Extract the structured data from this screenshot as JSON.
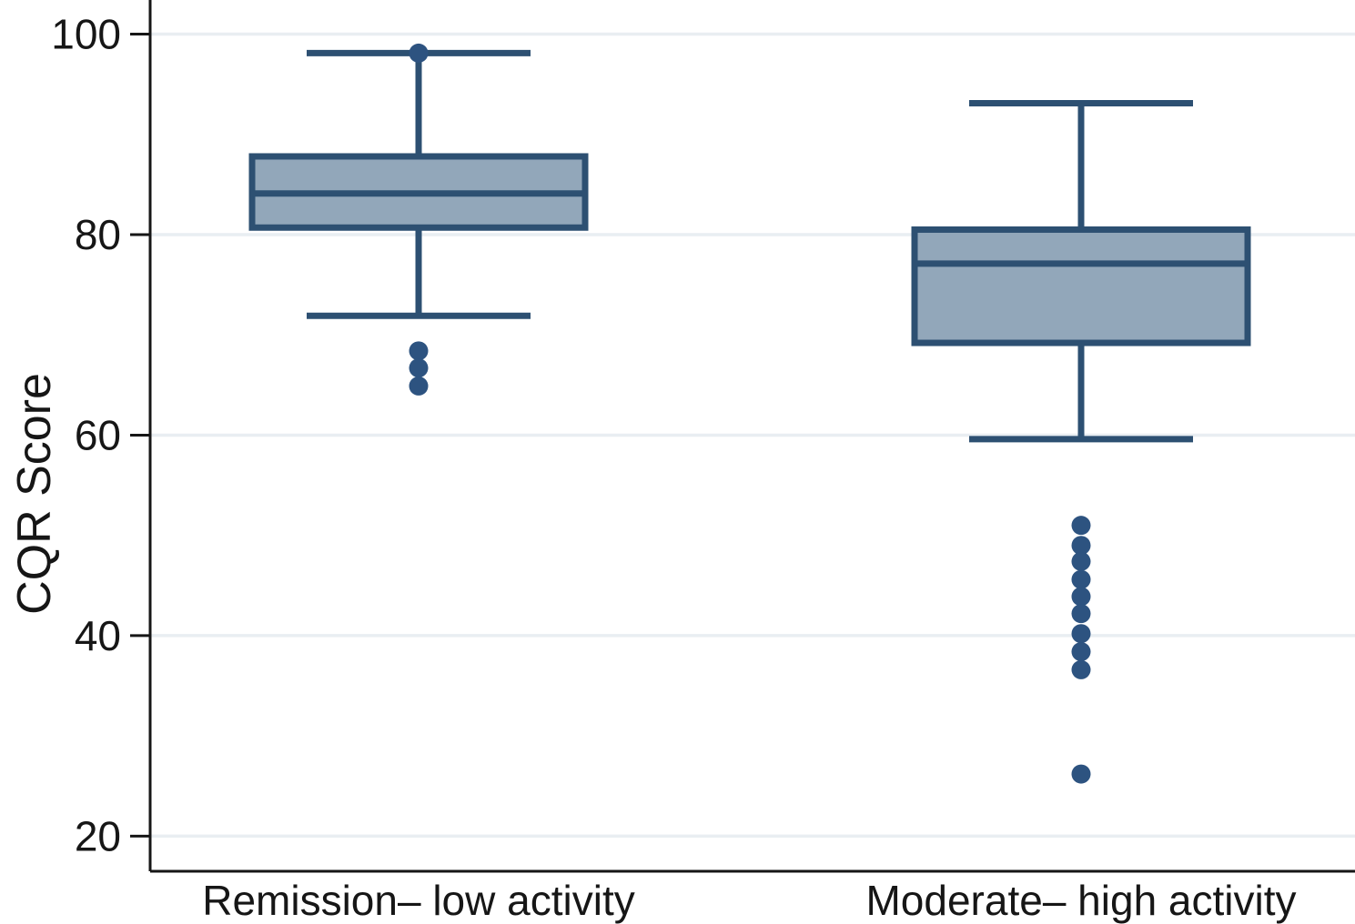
{
  "figure": {
    "background": "#ffffff"
  },
  "chart_data": {
    "type": "boxplot",
    "title": "",
    "xlabel": "",
    "ylabel": "CQR Score",
    "ylim": [
      16.5,
      103.4
    ],
    "yticks": [
      20,
      40,
      60,
      80,
      100
    ],
    "grid": "horizontal-light",
    "legend": "none",
    "categories": [
      "Remission– low activity",
      "Moderate– high activity"
    ],
    "series": [
      {
        "name": "Remission– low activity",
        "whisker_low": 71.9,
        "q1": 80.7,
        "median": 84.1,
        "q3": 87.8,
        "whisker_high": 98.1,
        "outliers": [
          98.1,
          68.4,
          66.7,
          64.9
        ]
      },
      {
        "name": "Moderate– high activity",
        "whisker_low": 59.6,
        "q1": 69.2,
        "median": 77.1,
        "q3": 80.5,
        "whisker_high": 93.1,
        "outliers": [
          51.0,
          49.0,
          47.4,
          45.6,
          43.9,
          42.2,
          40.2,
          38.4,
          36.6,
          26.2
        ]
      }
    ],
    "colors": {
      "box_fill": "#92a7ba",
      "box_stroke": "#2d5072",
      "outlier_fill": "#2d5380",
      "axis": "#161616",
      "gridline": "#e9eef2",
      "text": "#161616"
    }
  }
}
